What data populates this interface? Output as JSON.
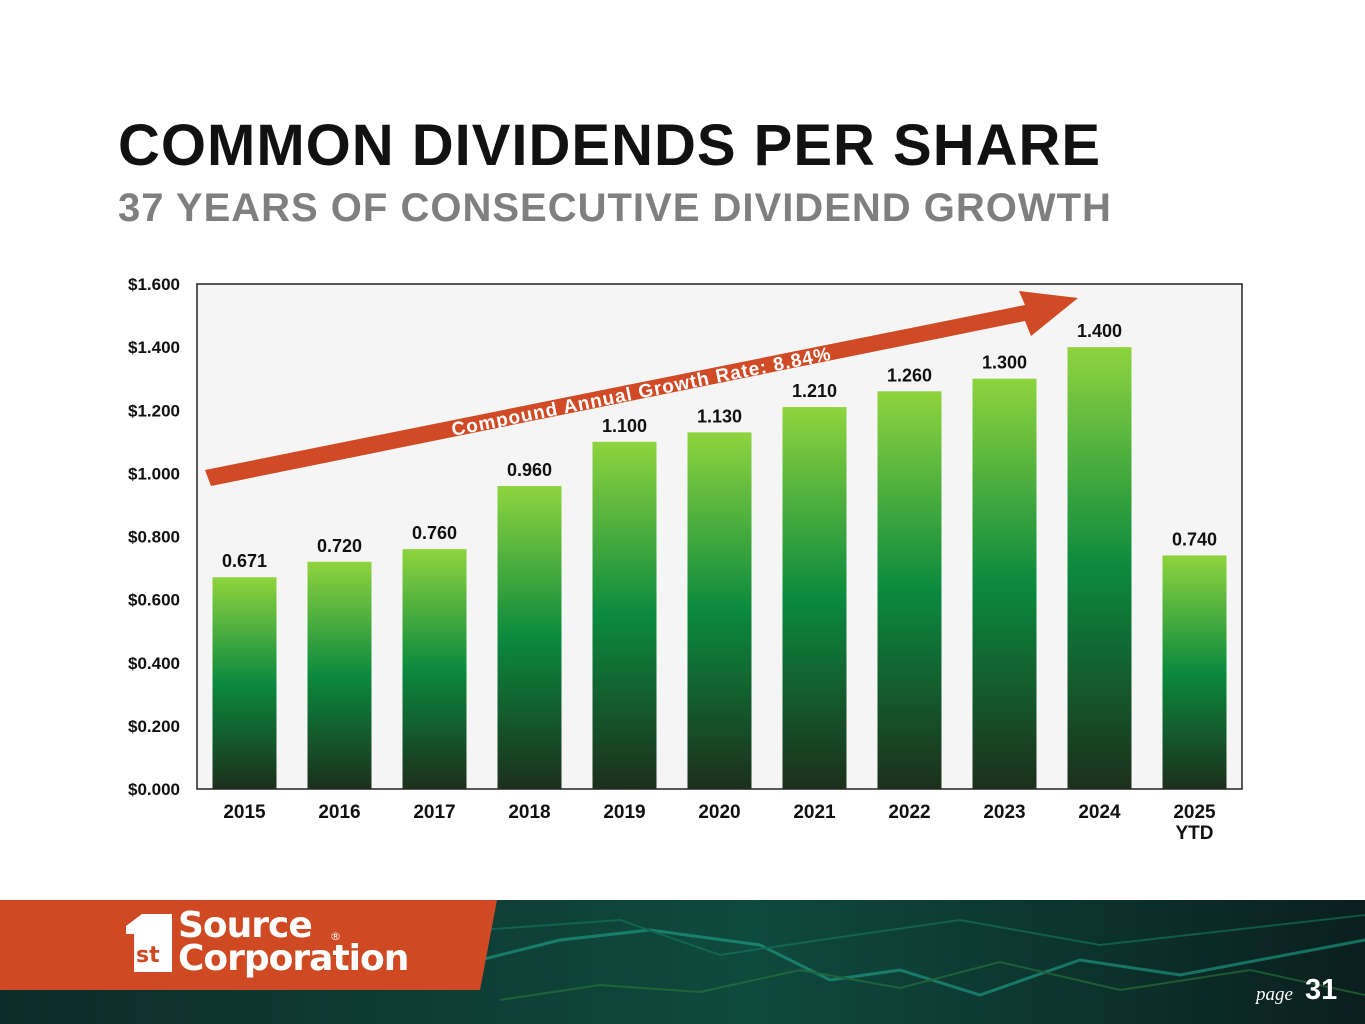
{
  "slide": {
    "title": "COMMON DIVIDENDS PER SHARE",
    "subtitle": "37 YEARS OF CONSECUTIVE DIVIDEND GROWTH",
    "page_label": "page",
    "page_number": "31"
  },
  "logo": {
    "mark_text": "st",
    "line1": "Source",
    "line2": "Corporation",
    "reg": "®"
  },
  "colors": {
    "bar_top": "#8fd43e",
    "bar_mid": "#0b8a3e",
    "bar_bottom": "#1c2f1c",
    "arrow": "#d04a25",
    "footer_orange": "#cf4a22",
    "footer_green": "#0b3b34",
    "plot_bg": "#f5f5f5"
  },
  "chart_data": {
    "type": "bar",
    "title": "",
    "xlabel": "",
    "ylabel": "",
    "categories": [
      "2015",
      "2016",
      "2017",
      "2018",
      "2019",
      "2020",
      "2021",
      "2022",
      "2023",
      "2024",
      "2025 YTD"
    ],
    "values": [
      0.671,
      0.72,
      0.76,
      0.96,
      1.1,
      1.13,
      1.21,
      1.26,
      1.3,
      1.4,
      0.74
    ],
    "value_labels": [
      "0.671",
      "0.720",
      "0.760",
      "0.960",
      "1.100",
      "1.130",
      "1.210",
      "1.260",
      "1.300",
      "1.400",
      "0.740"
    ],
    "ylim": [
      0,
      1.6
    ],
    "yticks": [
      0,
      0.2,
      0.4,
      0.6,
      0.8,
      1.0,
      1.2,
      1.4,
      1.6
    ],
    "ytick_labels": [
      "$0.000",
      "$0.200",
      "$0.400",
      "$0.600",
      "$0.800",
      "$1.000",
      "$1.200",
      "$1.400",
      "$1.600"
    ],
    "grid": false,
    "annotation": "Compound Annual Growth Rate: 8.84%"
  }
}
